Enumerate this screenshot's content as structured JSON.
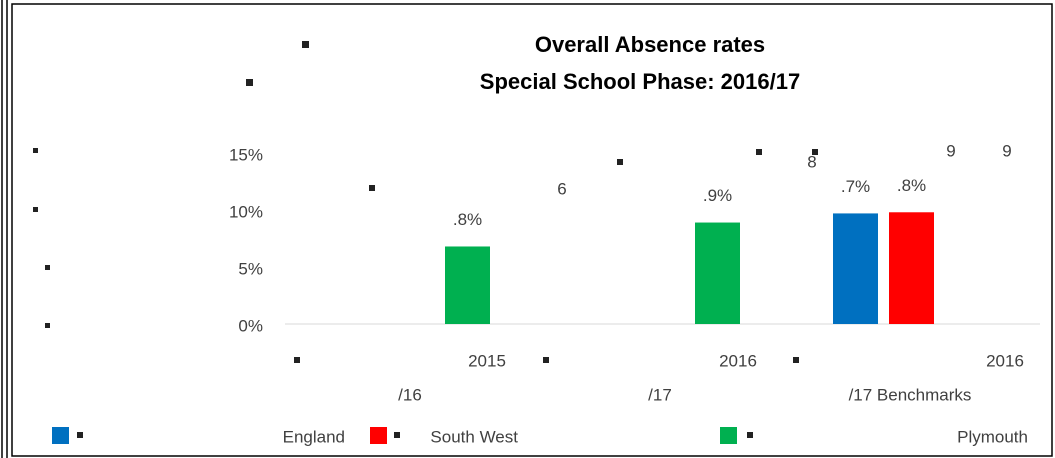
{
  "chart_data": {
    "type": "bar",
    "title": "Overall Absence rates",
    "subtitle": "Special School Phase: 2016/17",
    "categories": [
      [
        "2015",
        "/16"
      ],
      [
        "2016",
        "/17"
      ],
      [
        "2016",
        "/17 Benchmarks"
      ]
    ],
    "series": [
      {
        "name": "England",
        "color": "#0070c0",
        "values": [
          null,
          null,
          9.7
        ],
        "value_labels": [
          null,
          null,
          ".7%"
        ]
      },
      {
        "name": "South West",
        "color": "#ff0000",
        "values": [
          null,
          null,
          9.8
        ],
        "value_labels": [
          null,
          null,
          ".8%"
        ]
      },
      {
        "name": "Plymouth",
        "color": "#00b050",
        "values": [
          6.8,
          8.9,
          null
        ],
        "value_labels": [
          ".8%",
          ".9%",
          null
        ]
      }
    ],
    "annotations": [
      "6",
      "8",
      "9",
      "9"
    ],
    "ylim": [
      0,
      15
    ],
    "yticks": [
      {
        "value": 0,
        "label": "0%"
      },
      {
        "value": 5,
        "label": "5%"
      },
      {
        "value": 10,
        "label": "10%"
      },
      {
        "value": 15,
        "label": "15%"
      }
    ]
  }
}
